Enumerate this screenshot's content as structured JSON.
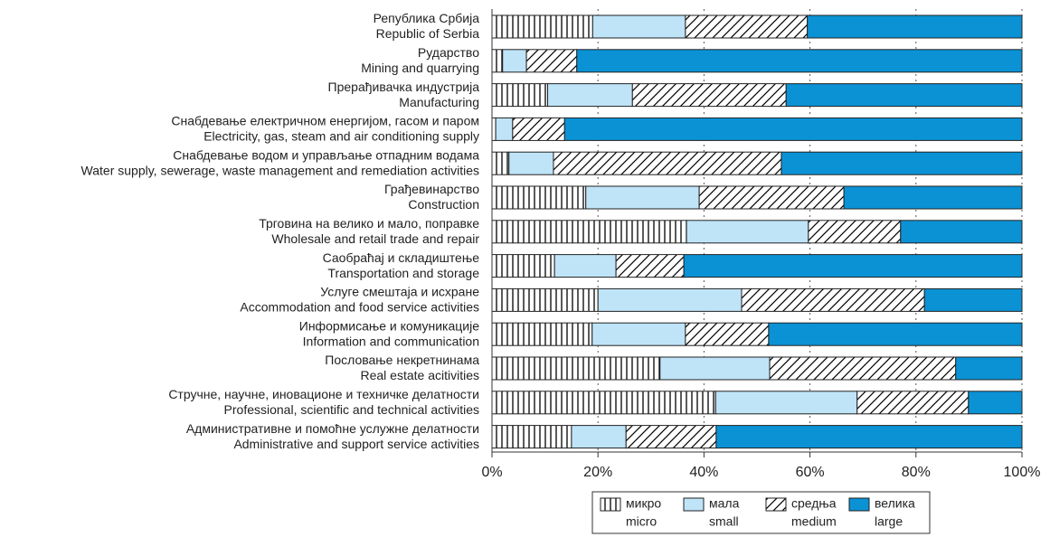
{
  "chart_data": {
    "type": "stacked_barh",
    "categories": [
      [
        "Република Србија",
        "Republic of Serbia"
      ],
      [
        "Рударство",
        "Mining and quarrying"
      ],
      [
        "Прерађивачка индустрија",
        "Manufacturing"
      ],
      [
        "Снабдевање електричном енергијом, гасом и паром",
        "Electricity, gas, steam and air conditioning supply"
      ],
      [
        "Снабдевање водом и управљање отпадним водама",
        "Water supply, sewerage, waste management and remediation activities"
      ],
      [
        "Грађевинарство",
        "Construction"
      ],
      [
        "Трговина на велико и мало, поправке",
        "Wholesale and retail trade and repair"
      ],
      [
        "Саобраћај и складиштење",
        "Transportation and  storage"
      ],
      [
        "Услуге смештаја и исхране",
        "Accommodation and food service activities"
      ],
      [
        "Информисање и комуникације",
        "Information and communication"
      ],
      [
        "Пословање некретнинама",
        "Real estate acitivities"
      ],
      [
        "Стручне, научне, иновационе и техничке делатности",
        "Professional, scientific and technical activities"
      ],
      [
        "Административне и помоћне услужне делатности",
        "Administrative and support service activities"
      ]
    ],
    "series": [
      {
        "name": [
          "микро",
          "micro"
        ],
        "color": "#ffffff",
        "pattern": "vertical",
        "values": [
          19,
          2,
          10.5,
          0.7,
          3.2,
          17.7,
          36.7,
          11.8,
          20,
          18.9,
          31.7,
          42.2,
          15
        ]
      },
      {
        "name": [
          "мала",
          "small"
        ],
        "color": "#bfe4f8",
        "pattern": "none",
        "values": [
          17.5,
          4.5,
          16,
          3.2,
          8.4,
          21.4,
          23,
          11.6,
          27.1,
          17.6,
          20.7,
          26.7,
          10.3
        ]
      },
      {
        "name": [
          "средња",
          "medium"
        ],
        "color": "#ffffff",
        "pattern": "diagonal",
        "values": [
          23,
          9.5,
          29,
          9.8,
          43,
          27.3,
          17.4,
          12.8,
          34.5,
          15.7,
          35.1,
          21,
          17
        ]
      },
      {
        "name": [
          "велика",
          "large"
        ],
        "color": "#0b92d5",
        "pattern": "none",
        "values": [
          40.5,
          84,
          44.5,
          86.3,
          45.4,
          33.6,
          22.9,
          63.8,
          18.4,
          47.8,
          12.5,
          10.1,
          57.7
        ]
      }
    ],
    "xlim": [
      0,
      100
    ],
    "xticks": [
      {
        "value": 0,
        "label": "0%"
      },
      {
        "value": 20,
        "label": "20%"
      },
      {
        "value": 40,
        "label": "40%"
      },
      {
        "value": 60,
        "label": "60%"
      },
      {
        "value": 80,
        "label": "80%"
      },
      {
        "value": 100,
        "label": "100%"
      }
    ],
    "grid": true
  }
}
